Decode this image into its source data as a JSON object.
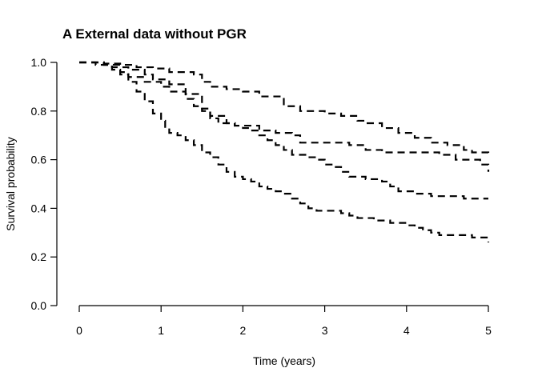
{
  "chart_data": {
    "type": "line",
    "title": "A External data without PGR",
    "xlabel": "Time (years)",
    "ylabel": "Survival probability",
    "xlim": [
      0,
      5
    ],
    "ylim": [
      0,
      1
    ],
    "xticks": [
      "0",
      "1",
      "2",
      "3",
      "4",
      "5"
    ],
    "yticks": [
      "0.0",
      "0.2",
      "0.4",
      "0.6",
      "0.8",
      "1.0"
    ],
    "grid": false,
    "line_style": "dashed",
    "line_color": "#000000",
    "series": [
      {
        "points": [
          [
            0,
            1.0
          ],
          [
            0.3,
            0.995
          ],
          [
            0.5,
            0.99
          ],
          [
            0.7,
            0.98
          ],
          [
            0.9,
            0.975
          ],
          [
            1.1,
            0.96
          ],
          [
            1.4,
            0.95
          ],
          [
            1.5,
            0.92
          ],
          [
            1.6,
            0.9
          ],
          [
            1.8,
            0.89
          ],
          [
            2.0,
            0.88
          ],
          [
            2.2,
            0.86
          ],
          [
            2.5,
            0.82
          ],
          [
            2.7,
            0.8
          ],
          [
            3.0,
            0.79
          ],
          [
            3.2,
            0.78
          ],
          [
            3.4,
            0.76
          ],
          [
            3.5,
            0.75
          ],
          [
            3.7,
            0.73
          ],
          [
            3.9,
            0.71
          ],
          [
            4.1,
            0.69
          ],
          [
            4.3,
            0.67
          ],
          [
            4.5,
            0.66
          ],
          [
            4.7,
            0.64
          ],
          [
            4.8,
            0.63
          ],
          [
            5.0,
            0.62
          ]
        ]
      },
      {
        "points": [
          [
            0,
            1.0
          ],
          [
            0.3,
            0.99
          ],
          [
            0.5,
            0.98
          ],
          [
            0.6,
            0.97
          ],
          [
            0.8,
            0.95
          ],
          [
            0.9,
            0.93
          ],
          [
            1.1,
            0.91
          ],
          [
            1.3,
            0.87
          ],
          [
            1.5,
            0.81
          ],
          [
            1.6,
            0.77
          ],
          [
            1.7,
            0.75
          ],
          [
            1.9,
            0.74
          ],
          [
            2.2,
            0.72
          ],
          [
            2.4,
            0.71
          ],
          [
            2.6,
            0.7
          ],
          [
            2.7,
            0.67
          ],
          [
            3.0,
            0.67
          ],
          [
            3.3,
            0.66
          ],
          [
            3.5,
            0.64
          ],
          [
            3.7,
            0.63
          ],
          [
            4.0,
            0.63
          ],
          [
            4.3,
            0.63
          ],
          [
            4.4,
            0.62
          ],
          [
            4.6,
            0.6
          ],
          [
            4.9,
            0.58
          ],
          [
            5.0,
            0.55
          ]
        ]
      },
      {
        "points": [
          [
            0,
            1.0
          ],
          [
            0.3,
            0.99
          ],
          [
            0.4,
            0.98
          ],
          [
            0.5,
            0.96
          ],
          [
            0.6,
            0.94
          ],
          [
            0.8,
            0.92
          ],
          [
            1.0,
            0.9
          ],
          [
            1.1,
            0.88
          ],
          [
            1.3,
            0.85
          ],
          [
            1.4,
            0.82
          ],
          [
            1.5,
            0.8
          ],
          [
            1.6,
            0.78
          ],
          [
            1.8,
            0.75
          ],
          [
            1.9,
            0.74
          ],
          [
            2.0,
            0.73
          ],
          [
            2.1,
            0.72
          ],
          [
            2.2,
            0.7
          ],
          [
            2.3,
            0.68
          ],
          [
            2.4,
            0.66
          ],
          [
            2.5,
            0.64
          ],
          [
            2.6,
            0.62
          ],
          [
            2.8,
            0.61
          ],
          [
            2.9,
            0.6
          ],
          [
            3.0,
            0.58
          ],
          [
            3.1,
            0.57
          ],
          [
            3.2,
            0.55
          ],
          [
            3.3,
            0.53
          ],
          [
            3.5,
            0.52
          ],
          [
            3.7,
            0.51
          ],
          [
            3.8,
            0.49
          ],
          [
            3.9,
            0.47
          ],
          [
            4.1,
            0.46
          ],
          [
            4.3,
            0.45
          ],
          [
            4.5,
            0.45
          ],
          [
            4.7,
            0.44
          ],
          [
            5.0,
            0.44
          ]
        ]
      },
      {
        "points": [
          [
            0,
            1.0
          ],
          [
            0.2,
            0.99
          ],
          [
            0.4,
            0.97
          ],
          [
            0.5,
            0.95
          ],
          [
            0.6,
            0.92
          ],
          [
            0.7,
            0.88
          ],
          [
            0.8,
            0.84
          ],
          [
            0.9,
            0.79
          ],
          [
            1.0,
            0.76
          ],
          [
            1.05,
            0.73
          ],
          [
            1.1,
            0.71
          ],
          [
            1.2,
            0.7
          ],
          [
            1.3,
            0.68
          ],
          [
            1.4,
            0.66
          ],
          [
            1.5,
            0.63
          ],
          [
            1.6,
            0.61
          ],
          [
            1.7,
            0.58
          ],
          [
            1.8,
            0.55
          ],
          [
            1.9,
            0.53
          ],
          [
            2.0,
            0.52
          ],
          [
            2.1,
            0.51
          ],
          [
            2.2,
            0.49
          ],
          [
            2.3,
            0.48
          ],
          [
            2.4,
            0.47
          ],
          [
            2.5,
            0.46
          ],
          [
            2.6,
            0.44
          ],
          [
            2.7,
            0.42
          ],
          [
            2.8,
            0.4
          ],
          [
            2.9,
            0.39
          ],
          [
            3.0,
            0.39
          ],
          [
            3.2,
            0.38
          ],
          [
            3.3,
            0.37
          ],
          [
            3.4,
            0.36
          ],
          [
            3.6,
            0.35
          ],
          [
            3.8,
            0.34
          ],
          [
            4.0,
            0.33
          ],
          [
            4.1,
            0.32
          ],
          [
            4.2,
            0.31
          ],
          [
            4.3,
            0.3
          ],
          [
            4.4,
            0.29
          ],
          [
            4.6,
            0.29
          ],
          [
            4.8,
            0.28
          ],
          [
            5.0,
            0.26
          ]
        ]
      }
    ]
  }
}
